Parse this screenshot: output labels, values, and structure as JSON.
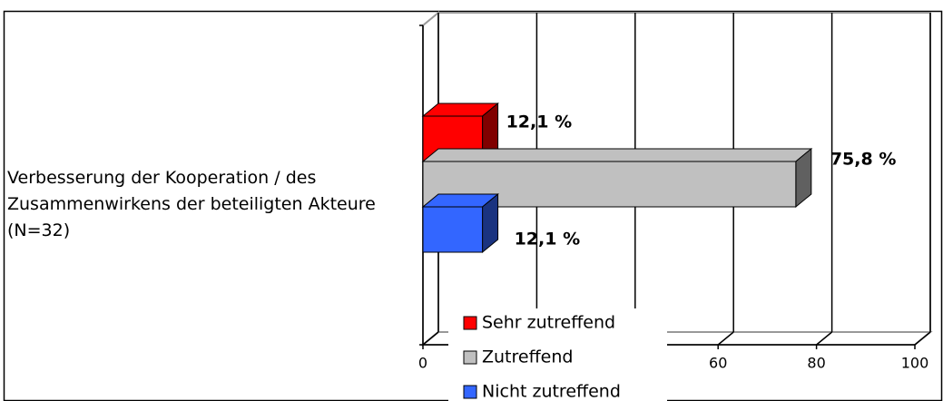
{
  "chart_data": {
    "type": "bar3d_horizontal",
    "categories": [
      "Verbesserung der Kooperation / des Zusammenwirkens der beteiligten Akteure (N=32)"
    ],
    "series": [
      {
        "name": "Sehr zutreffend",
        "color": "#ff0000",
        "values": [
          12.1
        ],
        "value_labels": [
          "12,1 %"
        ]
      },
      {
        "name": "Zutreffend",
        "color": "#c0c0c0",
        "values": [
          75.8
        ],
        "value_labels": [
          "75,8 %"
        ]
      },
      {
        "name": "Nicht zutreffend",
        "color": "#3366ff",
        "values": [
          12.1
        ],
        "value_labels": [
          "12,1 %"
        ]
      }
    ],
    "xlim": [
      0,
      100
    ],
    "xticks": [
      0,
      20,
      40,
      60,
      80,
      100
    ],
    "grid": true,
    "legend": "bottom"
  }
}
